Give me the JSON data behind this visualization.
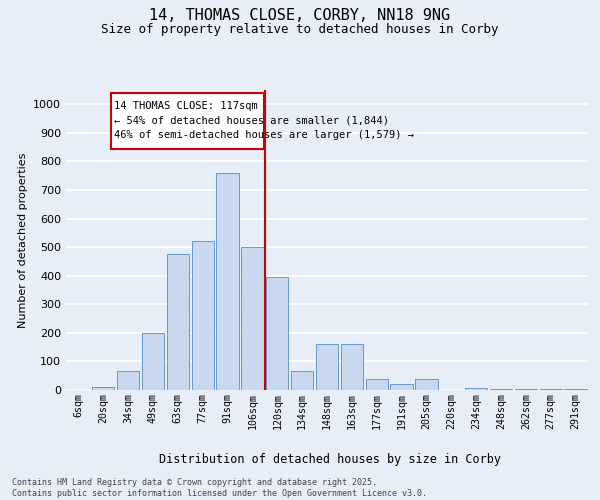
{
  "title": "14, THOMAS CLOSE, CORBY, NN18 9NG",
  "subtitle": "Size of property relative to detached houses in Corby",
  "xlabel": "Distribution of detached houses by size in Corby",
  "ylabel": "Number of detached properties",
  "categories": [
    "6sqm",
    "20sqm",
    "34sqm",
    "49sqm",
    "63sqm",
    "77sqm",
    "91sqm",
    "106sqm",
    "120sqm",
    "134sqm",
    "148sqm",
    "163sqm",
    "177sqm",
    "191sqm",
    "205sqm",
    "220sqm",
    "234sqm",
    "248sqm",
    "262sqm",
    "277sqm",
    "291sqm"
  ],
  "values": [
    0,
    12,
    65,
    200,
    475,
    520,
    760,
    500,
    395,
    65,
    160,
    160,
    40,
    20,
    40,
    0,
    8,
    5,
    4,
    4,
    4
  ],
  "bar_color": "#c8d8ee",
  "bar_edge_color": "#6699cc",
  "vline_color": "#cc0000",
  "vline_x_idx": 7,
  "annotation_title": "14 THOMAS CLOSE: 117sqm",
  "annotation_line2": "← 54% of detached houses are smaller (1,844)",
  "annotation_line3": "46% of semi-detached houses are larger (1,579) →",
  "annotation_box_edgecolor": "#cc0000",
  "annotation_fill": "white",
  "ylim": [
    0,
    1050
  ],
  "yticks": [
    0,
    100,
    200,
    300,
    400,
    500,
    600,
    700,
    800,
    900,
    1000
  ],
  "background_color": "#e8eef8",
  "grid_color": "white",
  "footer_line1": "Contains HM Land Registry data © Crown copyright and database right 2025.",
  "footer_line2": "Contains public sector information licensed under the Open Government Licence v3.0."
}
